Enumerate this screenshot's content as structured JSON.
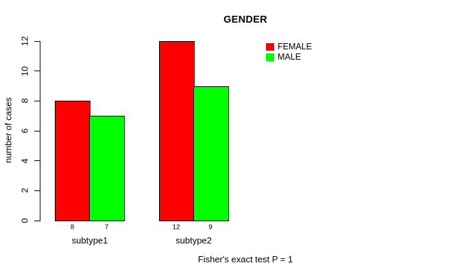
{
  "chart_data": {
    "type": "bar",
    "title": "GENDER",
    "xlabel": "",
    "ylabel": "number of cases",
    "categories": [
      "subtype1",
      "subtype2"
    ],
    "series": [
      {
        "name": "FEMALE",
        "color": "#FF0000",
        "values": [
          8,
          12
        ]
      },
      {
        "name": "MALE",
        "color": "#00FF00",
        "values": [
          7,
          9
        ]
      }
    ],
    "bar_value_labels": {
      "FEMALE": [
        "8",
        "12"
      ],
      "MALE": [
        "7",
        "9"
      ]
    },
    "ylim": [
      0,
      12
    ],
    "yticks": [
      0,
      2,
      4,
      6,
      8,
      10,
      12
    ],
    "grid": false,
    "legend_position": "top-right",
    "annotation": "Fisher's exact test P = 1"
  }
}
